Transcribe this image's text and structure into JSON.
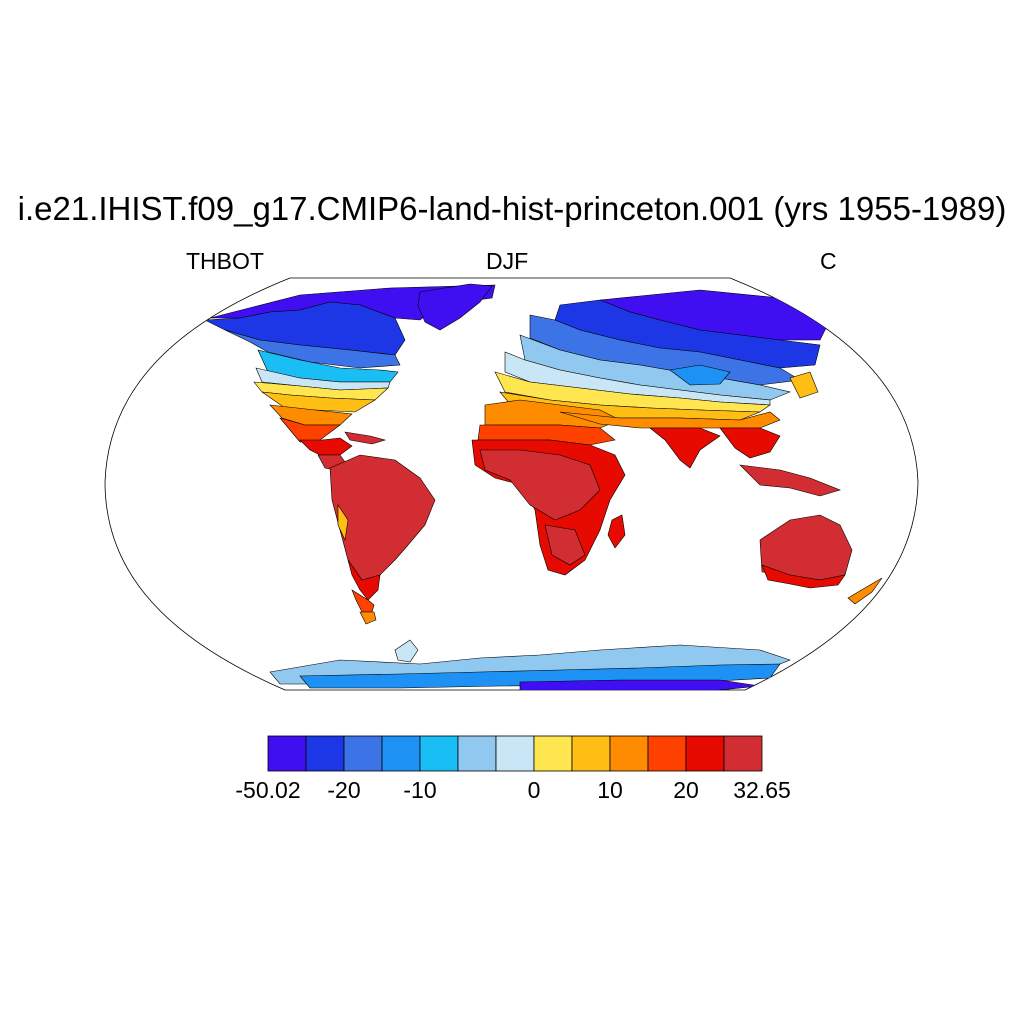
{
  "title": "i.e21.IHIST.f09_g17.CMIP6-land-hist-princeton.001 (yrs 1955-1989)",
  "subtitle_left": "THBOT",
  "subtitle_center": "DJF",
  "subtitle_right": "C",
  "map": {
    "projection": "robinson",
    "field": "THBOT",
    "season": "DJF",
    "units": "C",
    "coastlines": true,
    "ocean": "masked"
  },
  "colorbar": {
    "colors": [
      "#3f0ff2",
      "#1e37e6",
      "#3c73e6",
      "#1e91f5",
      "#19bef5",
      "#91c8f0",
      "#c8e6f5",
      "#ffe650",
      "#ffbe14",
      "#ff8c00",
      "#ff4100",
      "#e60a00",
      "#d22d32"
    ],
    "labels": [
      {
        "text": "-50.02",
        "index": 0
      },
      {
        "text": "-20",
        "index": 2
      },
      {
        "text": "-10",
        "index": 4
      },
      {
        "text": "0",
        "index": 7
      },
      {
        "text": "10",
        "index": 9
      },
      {
        "text": "20",
        "index": 11
      },
      {
        "text": "32.65",
        "index": 13
      }
    ]
  }
}
